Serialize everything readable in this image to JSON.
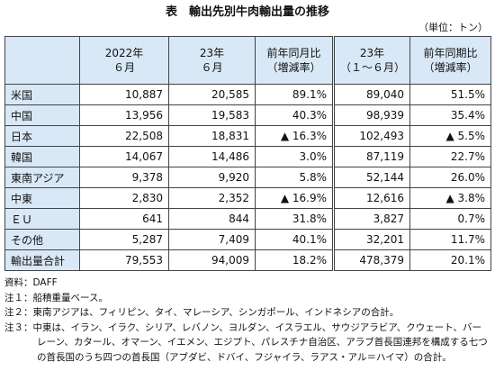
{
  "header": {
    "title": "表　輸出先別牛肉輸出量の推移",
    "unit": "（単位：トン）"
  },
  "table": {
    "columns": [
      [
        "2022年",
        "６月"
      ],
      [
        "23年",
        "６月"
      ],
      [
        "前年同月比",
        "（増減率）"
      ],
      [
        "23年",
        "（１～６月）"
      ],
      [
        "前年同期比",
        "（増減率）"
      ]
    ],
    "rows": [
      [
        "米国",
        "10,887",
        "20,585",
        "89.1%",
        "89,040",
        "51.5%"
      ],
      [
        "中国",
        "13,956",
        "19,583",
        "40.3%",
        "98,939",
        "35.4%"
      ],
      [
        "日本",
        "22,508",
        "18,831",
        "▲ 16.3%",
        "102,493",
        "▲ 5.5%"
      ],
      [
        "韓国",
        "14,067",
        "14,486",
        "3.0%",
        "87,119",
        "22.7%"
      ],
      [
        "東南アジア",
        "9,378",
        "9,920",
        "5.8%",
        "52,144",
        "26.0%"
      ],
      [
        "中東",
        "2,830",
        "2,352",
        "▲ 16.9%",
        "12,616",
        "▲ 3.8%"
      ],
      [
        "ＥＵ",
        "641",
        "844",
        "31.8%",
        "3,827",
        "0.7%"
      ],
      [
        "その他",
        "5,287",
        "7,409",
        "40.1%",
        "32,201",
        "11.7%"
      ],
      [
        "輸出量合計",
        "79,553",
        "94,009",
        "18.2%",
        "478,379",
        "20.1%"
      ]
    ]
  },
  "notes": [
    "資料：DAFF",
    "注１：船積重量ベース。",
    "注２：東南アジアは、フィリピン、タイ、マレーシア、シンガポール、インドネシアの合計。",
    "注３：中東は、イラン、イラク、シリア、レバノン、ヨルダン、イスラエル、サウジアラビア、クウェート、バーレーン、カタール、オマーン、イエメン、エジプト、パレスチナ自治区、アラブ首長国連邦を構成する七つの首長国のうち四つの首長国（アブダビ、ドバイ、フジャイラ、ラアス・アル＝ハイマ）の合計。"
  ]
}
